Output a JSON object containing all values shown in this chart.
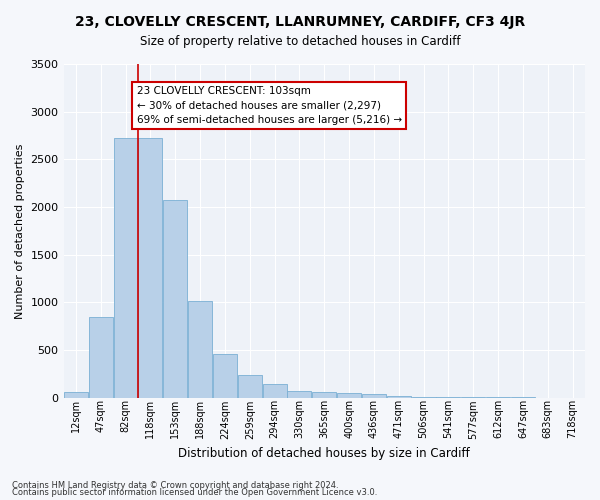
{
  "title": "23, CLOVELLY CRESCENT, LLANRUMNEY, CARDIFF, CF3 4JR",
  "subtitle": "Size of property relative to detached houses in Cardiff",
  "xlabel": "Distribution of detached houses by size in Cardiff",
  "ylabel": "Number of detached properties",
  "bar_color": "#b8d0e8",
  "bar_edge_color": "#7aafd4",
  "background_color": "#eef2f8",
  "figure_color": "#f5f7fb",
  "grid_color": "#ffffff",
  "categories": [
    "12sqm",
    "47sqm",
    "82sqm",
    "118sqm",
    "153sqm",
    "188sqm",
    "224sqm",
    "259sqm",
    "294sqm",
    "330sqm",
    "365sqm",
    "400sqm",
    "436sqm",
    "471sqm",
    "506sqm",
    "541sqm",
    "577sqm",
    "612sqm",
    "647sqm",
    "683sqm",
    "718sqm"
  ],
  "values": [
    60,
    850,
    2720,
    2720,
    2070,
    1010,
    460,
    235,
    145,
    75,
    60,
    50,
    35,
    20,
    12,
    7,
    5,
    4,
    3,
    2,
    1
  ],
  "property_line_x": 2.5,
  "annotation_text": "23 CLOVELLY CRESCENT: 103sqm\n← 30% of detached houses are smaller (2,297)\n69% of semi-detached houses are larger (5,216) →",
  "annotation_box_color": "#ffffff",
  "annotation_border_color": "#cc0000",
  "vline_color": "#cc0000",
  "ylim": [
    0,
    3500
  ],
  "yticks": [
    0,
    500,
    1000,
    1500,
    2000,
    2500,
    3000,
    3500
  ],
  "footnote1": "Contains HM Land Registry data © Crown copyright and database right 2024.",
  "footnote2": "Contains public sector information licensed under the Open Government Licence v3.0."
}
